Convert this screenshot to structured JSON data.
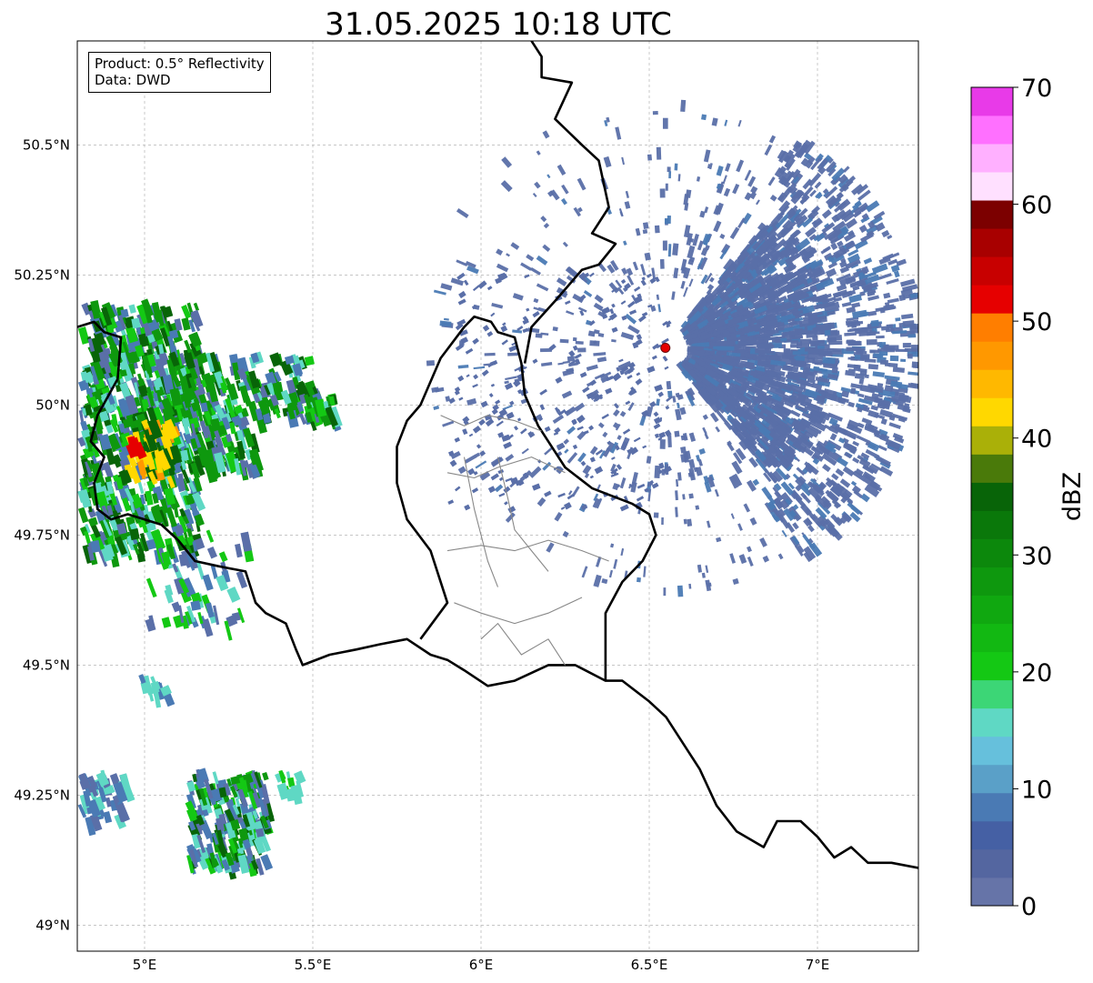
{
  "title": "31.05.2025 10:18 UTC",
  "info": {
    "product": "Product: 0.5° Reflectivity",
    "data": "Data: DWD"
  },
  "map": {
    "lon_range": [
      4.8,
      7.3
    ],
    "lat_range": [
      48.95,
      50.7
    ],
    "x_ticks": [
      {
        "v": 5.0,
        "label": "5°E"
      },
      {
        "v": 5.5,
        "label": "5.5°E"
      },
      {
        "v": 6.0,
        "label": "6°E"
      },
      {
        "v": 6.5,
        "label": "6.5°E"
      },
      {
        "v": 7.0,
        "label": "7°E"
      }
    ],
    "y_ticks": [
      {
        "v": 49.0,
        "label": "49°N"
      },
      {
        "v": 49.25,
        "label": "49.25°N"
      },
      {
        "v": 49.5,
        "label": "49.5°N"
      },
      {
        "v": 49.75,
        "label": "49.75°N"
      },
      {
        "v": 50.0,
        "label": "50°N"
      },
      {
        "v": 50.25,
        "label": "50.25°N"
      },
      {
        "v": 50.5,
        "label": "50.5°N"
      }
    ],
    "grid": true,
    "radar_site": {
      "lon": 6.548,
      "lat": 50.11
    }
  },
  "colorbar": {
    "label": "dBZ",
    "min": 0,
    "max": 70,
    "ticks": [
      {
        "v": 0,
        "label": "0"
      },
      {
        "v": 10,
        "label": "10"
      },
      {
        "v": 20,
        "label": "20"
      },
      {
        "v": 30,
        "label": "30"
      },
      {
        "v": 40,
        "label": "40"
      },
      {
        "v": 50,
        "label": "50"
      },
      {
        "v": 60,
        "label": "60"
      },
      {
        "v": 70,
        "label": "70"
      }
    ],
    "colors": [
      "#6674a8",
      "#5466a0",
      "#4560a4",
      "#4a7ab4",
      "#5aa0c8",
      "#66c0dc",
      "#5fd8c4",
      "#3cd676",
      "#14c814",
      "#12b812",
      "#10a810",
      "#0e980e",
      "#0c880c",
      "#0a780a",
      "#086408",
      "#4a7a0a",
      "#aab008",
      "#ffd800",
      "#ffb800",
      "#ff9800",
      "#ff7e00",
      "#e60000",
      "#c80000",
      "#a80000",
      "#7c0000",
      "#ffe0ff",
      "#ffb0ff",
      "#ff70ff",
      "#e83ae8"
    ]
  },
  "echo_colors": {
    "light": "#5a6fa8",
    "mid": "#4a7ab4",
    "cyan": "#5fd8c4",
    "green_light": "#14c814",
    "green": "#0e980e",
    "green_dark": "#086408",
    "yellow": "#ffd800",
    "orange": "#ff9800",
    "red": "#e60000"
  }
}
